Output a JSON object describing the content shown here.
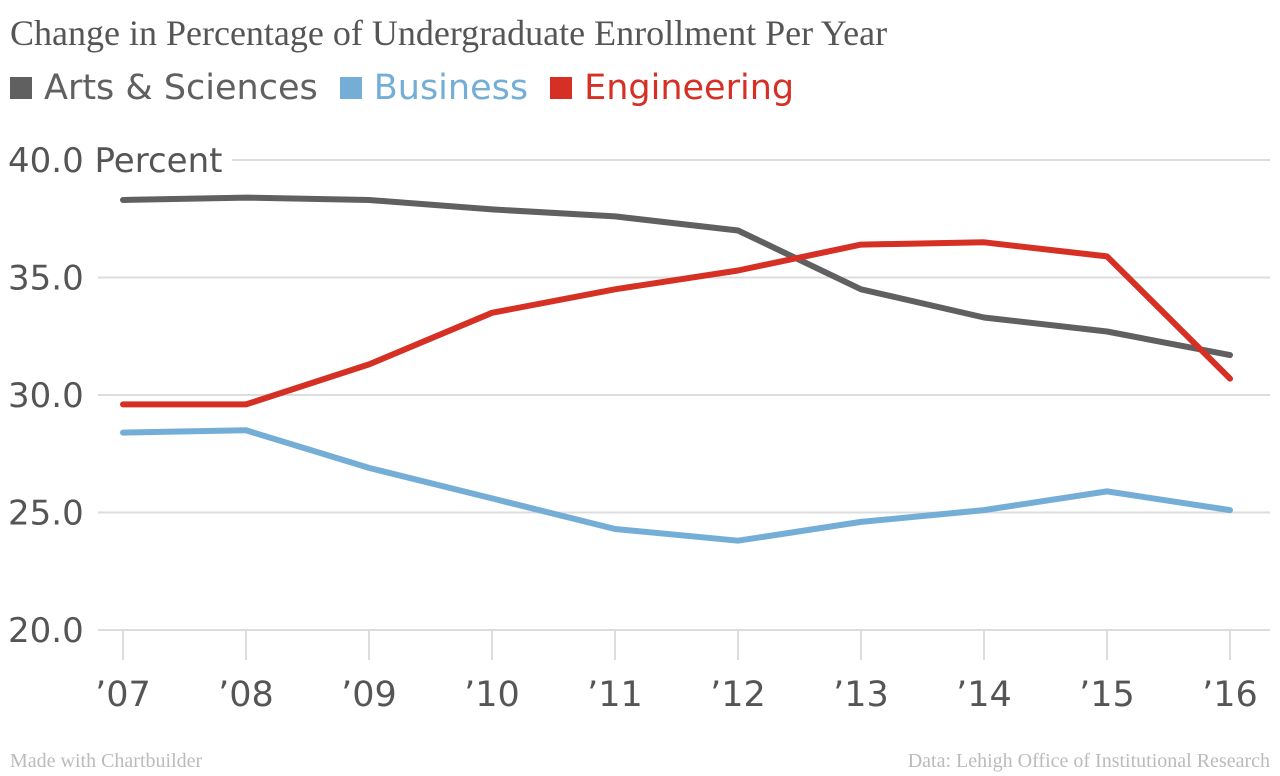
{
  "chart_data": {
    "type": "line",
    "title": "Change in Percentage of Undergraduate Enrollment Per Year",
    "ylabel_suffix": "Percent",
    "x": [
      "'07",
      "'08",
      "'09",
      "'10",
      "'11",
      "'12",
      "'13",
      "'14",
      "'15",
      "'16"
    ],
    "y_ticks": [
      "20.0",
      "25.0",
      "30.0",
      "35.0",
      "40.0"
    ],
    "ylim": [
      20,
      40
    ],
    "grid": true,
    "legend_position": "top-left",
    "series": [
      {
        "name": "Arts & Sciences",
        "color": "#606060",
        "values": [
          38.3,
          38.4,
          38.3,
          37.9,
          37.6,
          37.0,
          34.5,
          33.3,
          32.7,
          31.7
        ]
      },
      {
        "name": "Business",
        "color": "#74aed6",
        "values": [
          28.4,
          28.5,
          26.9,
          25.6,
          24.3,
          23.8,
          24.6,
          25.1,
          25.9,
          25.1
        ]
      },
      {
        "name": "Engineering",
        "color": "#d63025",
        "values": [
          29.6,
          29.6,
          31.3,
          33.5,
          34.5,
          35.3,
          36.4,
          36.5,
          35.9,
          30.7
        ]
      }
    ]
  },
  "footer": {
    "left": "Made with Chartbuilder",
    "right": "Data: Lehigh Office of Institutional Research"
  }
}
